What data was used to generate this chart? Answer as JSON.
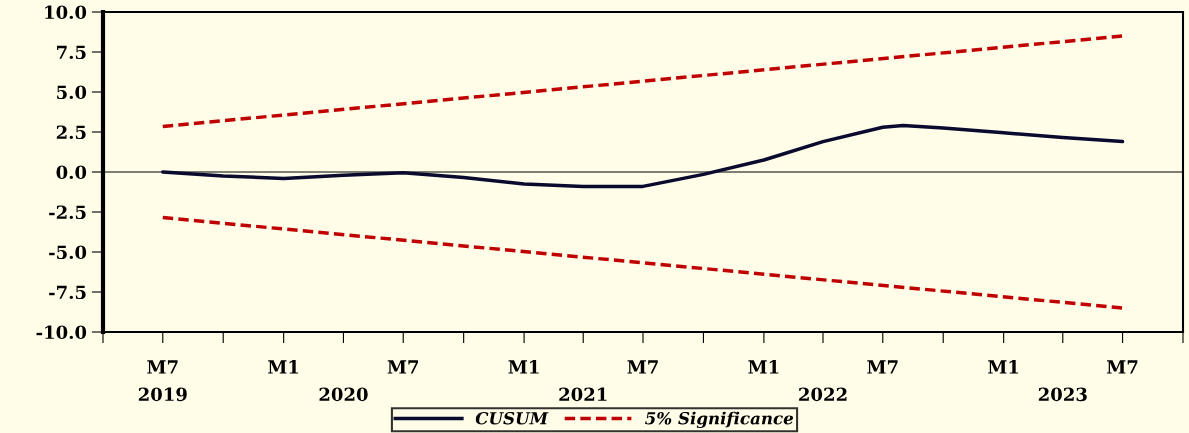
{
  "chart_data": {
    "type": "line",
    "series": [
      {
        "name": "CUSUM",
        "color": "#0a0a2e",
        "line_style": "solid",
        "x": [
          "2019-07",
          "2019-10",
          "2020-01",
          "2020-04",
          "2020-07",
          "2020-10",
          "2021-01",
          "2021-04",
          "2021-07",
          "2021-10",
          "2022-01",
          "2022-04",
          "2022-07",
          "2022-08",
          "2022-10",
          "2023-01",
          "2023-04",
          "2023-07"
        ],
        "values": [
          0.0,
          -0.25,
          -0.4,
          -0.2,
          -0.05,
          -0.35,
          -0.75,
          -0.9,
          -0.9,
          -0.15,
          0.75,
          1.9,
          2.8,
          2.9,
          2.75,
          2.45,
          2.15,
          1.9
        ]
      },
      {
        "name": "5% Significance",
        "color": "#c00000",
        "line_style": "dashed",
        "x": [
          "2019-07",
          "2023-07"
        ],
        "values": [
          2.85,
          8.5
        ]
      },
      {
        "color": "#c00000",
        "line_style": "dashed",
        "x": [
          "2019-07",
          "2023-07"
        ],
        "values": [
          -2.85,
          -8.5
        ]
      }
    ],
    "xlim": [
      "2019-04",
      "2023-10"
    ],
    "xticks": [
      {
        "value": "2019-04",
        "label": null
      },
      {
        "value": "2019-07",
        "label": "M7"
      },
      {
        "value": "2019-10",
        "label": null
      },
      {
        "value": "2020-01",
        "label": "M1"
      },
      {
        "value": "2020-04",
        "label": null
      },
      {
        "value": "2020-07",
        "label": "M7"
      },
      {
        "value": "2020-10",
        "label": null
      },
      {
        "value": "2021-01",
        "label": "M1"
      },
      {
        "value": "2021-04",
        "label": null
      },
      {
        "value": "2021-07",
        "label": "M7"
      },
      {
        "value": "2021-10",
        "label": null
      },
      {
        "value": "2022-01",
        "label": "M1"
      },
      {
        "value": "2022-04",
        "label": null
      },
      {
        "value": "2022-07",
        "label": "M7"
      },
      {
        "value": "2022-10",
        "label": null
      },
      {
        "value": "2023-01",
        "label": "M1"
      },
      {
        "value": "2023-04",
        "label": null
      },
      {
        "value": "2023-07",
        "label": "M7"
      },
      {
        "value": "2023-10",
        "label": null
      }
    ],
    "x2lim": [
      "2019-04",
      "2023-10"
    ],
    "x2ticks": [
      {
        "value": "2019-07",
        "label": "2019"
      },
      {
        "value": "2020-04",
        "label": "2020"
      },
      {
        "value": "2021-04",
        "label": "2021"
      },
      {
        "value": "2022-04",
        "label": "2022"
      },
      {
        "value": "2023-04",
        "label": "2023"
      }
    ],
    "ylim": [
      -10,
      10
    ],
    "yticks": [
      {
        "value": -10,
        "label": "-10.0"
      },
      {
        "value": -7.5,
        "label": "-7.5"
      },
      {
        "value": -5,
        "label": "-5.0"
      },
      {
        "value": -2.5,
        "label": "-2.5"
      },
      {
        "value": 0,
        "label": "0.0"
      },
      {
        "value": 2.5,
        "label": "2.5"
      },
      {
        "value": 5,
        "label": "5.0"
      },
      {
        "value": 7.5,
        "label": "7.5"
      },
      {
        "value": 10,
        "label": "10.0"
      }
    ],
    "ref_lines": [
      {
        "axis": "y",
        "value": 0,
        "color": "#000000"
      }
    ],
    "grid": false,
    "legend": "bottom"
  }
}
